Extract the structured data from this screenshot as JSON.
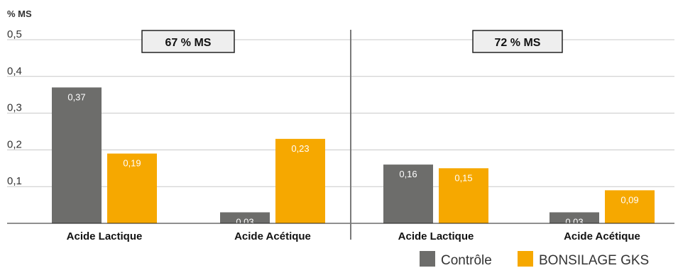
{
  "chart_data": {
    "type": "bar",
    "unit_label": "% MS",
    "y_ticks": [
      "0,1",
      "0,2",
      "0,3",
      "0,4",
      "0,5"
    ],
    "ylim": [
      0,
      0.5
    ],
    "grid": true,
    "legend_position": "bottom-right",
    "series": [
      {
        "name": "Contrôle",
        "color": "#6d6d6b"
      },
      {
        "name": "BONSILAGE GKS",
        "color": "#f6a800"
      }
    ],
    "panels": [
      {
        "label": "67 % MS",
        "categories": [
          "Acide Lactique",
          "Acide Acétique"
        ],
        "values": [
          [
            0.37,
            0.19
          ],
          [
            0.03,
            0.23
          ]
        ],
        "value_labels": [
          [
            "0,37",
            "0,19"
          ],
          [
            "0,03",
            "0,23"
          ]
        ]
      },
      {
        "label": "72 % MS",
        "categories": [
          "Acide Lactique",
          "Acide Acétique"
        ],
        "values": [
          [
            0.16,
            0.15
          ],
          [
            0.03,
            0.09
          ]
        ],
        "value_labels": [
          [
            "0,16",
            "0,15"
          ],
          [
            "0,03",
            "0,09"
          ]
        ]
      }
    ]
  }
}
